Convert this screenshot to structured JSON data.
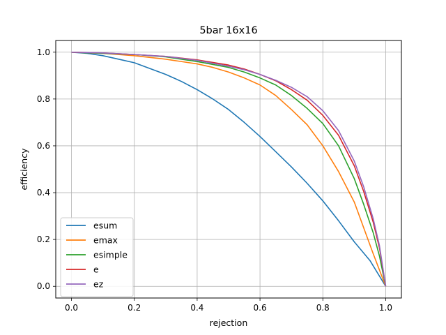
{
  "chart_data": {
    "type": "line",
    "title": "5bar 16x16",
    "xlabel": "rejection",
    "ylabel": "efficiency",
    "xlim": [
      -0.05,
      1.05
    ],
    "ylim": [
      -0.05,
      1.05
    ],
    "xticks": [
      0.0,
      0.2,
      0.4,
      0.6,
      0.8,
      1.0
    ],
    "yticks": [
      0.0,
      0.2,
      0.4,
      0.6,
      0.8,
      1.0
    ],
    "xtick_labels": [
      "0.0",
      "0.2",
      "0.4",
      "0.6",
      "0.8",
      "1.0"
    ],
    "ytick_labels": [
      "0.0",
      "0.2",
      "0.4",
      "0.6",
      "0.8",
      "1.0"
    ],
    "grid": true,
    "legend_position": "lower-left",
    "series": [
      {
        "name": "esum",
        "color": "#1f77b4",
        "x": [
          0.0,
          0.05,
          0.1,
          0.15,
          0.2,
          0.25,
          0.3,
          0.35,
          0.4,
          0.45,
          0.5,
          0.55,
          0.6,
          0.65,
          0.7,
          0.75,
          0.8,
          0.85,
          0.9,
          0.95,
          1.0
        ],
        "y": [
          1.0,
          0.995,
          0.985,
          0.97,
          0.955,
          0.93,
          0.905,
          0.875,
          0.84,
          0.8,
          0.755,
          0.7,
          0.64,
          0.575,
          0.51,
          0.44,
          0.365,
          0.28,
          0.19,
          0.11,
          0.0
        ]
      },
      {
        "name": "emax",
        "color": "#ff7f0e",
        "x": [
          0.0,
          0.1,
          0.2,
          0.3,
          0.4,
          0.45,
          0.5,
          0.55,
          0.6,
          0.65,
          0.7,
          0.75,
          0.8,
          0.85,
          0.9,
          0.93,
          0.96,
          1.0
        ],
        "y": [
          1.0,
          0.995,
          0.985,
          0.97,
          0.95,
          0.935,
          0.915,
          0.89,
          0.86,
          0.815,
          0.755,
          0.69,
          0.6,
          0.49,
          0.36,
          0.25,
          0.14,
          0.0
        ]
      },
      {
        "name": "esimple",
        "color": "#2ca02c",
        "x": [
          0.0,
          0.1,
          0.2,
          0.3,
          0.4,
          0.5,
          0.55,
          0.6,
          0.65,
          0.7,
          0.75,
          0.8,
          0.85,
          0.9,
          0.93,
          0.96,
          0.98,
          1.0
        ],
        "y": [
          1.0,
          0.995,
          0.99,
          0.98,
          0.96,
          0.935,
          0.915,
          0.89,
          0.86,
          0.815,
          0.76,
          0.695,
          0.6,
          0.46,
          0.35,
          0.23,
          0.13,
          0.0
        ]
      },
      {
        "name": "e",
        "color": "#d62728",
        "x": [
          0.0,
          0.1,
          0.2,
          0.3,
          0.4,
          0.5,
          0.55,
          0.6,
          0.65,
          0.7,
          0.75,
          0.8,
          0.85,
          0.9,
          0.93,
          0.96,
          0.98,
          1.0
        ],
        "y": [
          1.0,
          0.997,
          0.99,
          0.982,
          0.967,
          0.945,
          0.928,
          0.905,
          0.878,
          0.84,
          0.795,
          0.73,
          0.645,
          0.515,
          0.405,
          0.275,
          0.165,
          0.0
        ]
      },
      {
        "name": "ez",
        "color": "#9467bd",
        "x": [
          0.0,
          0.1,
          0.2,
          0.3,
          0.4,
          0.5,
          0.55,
          0.6,
          0.65,
          0.7,
          0.75,
          0.8,
          0.85,
          0.9,
          0.93,
          0.96,
          0.98,
          1.0
        ],
        "y": [
          1.0,
          0.997,
          0.99,
          0.982,
          0.965,
          0.94,
          0.925,
          0.905,
          0.88,
          0.85,
          0.81,
          0.75,
          0.665,
          0.535,
          0.425,
          0.29,
          0.175,
          0.0
        ]
      }
    ]
  }
}
